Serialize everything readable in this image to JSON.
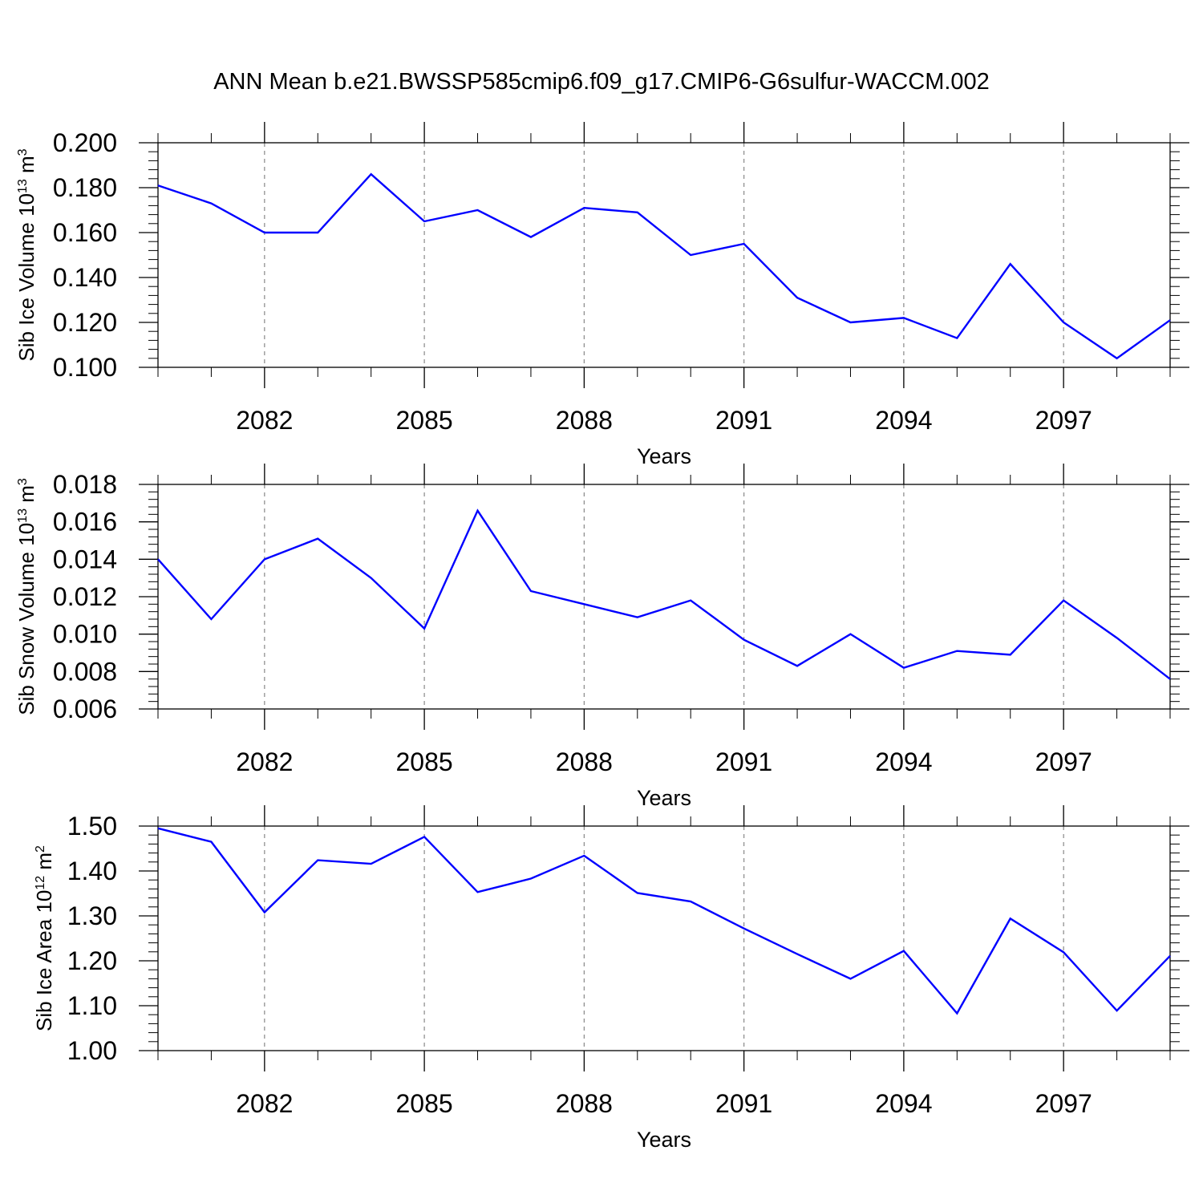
{
  "page": {
    "title": "ANN Mean b.e21.BWSSP585cmip6.f09_g17.CMIP6-G6sulfur-WACCM.002"
  },
  "colors": {
    "line": "#0000ff",
    "axis": "#000000",
    "grid": "#888888"
  },
  "chart_data": [
    {
      "type": "line",
      "title": "",
      "xlabel": "Years",
      "ylabel": "Sib Ice Volume 10",
      "ylabel_exp": "13",
      "ylabel_unit": " m",
      "ylabel_unit_exp": "3",
      "xlim": [
        2080,
        2099
      ],
      "ylim": [
        0.1,
        0.2
      ],
      "yticks": [
        0.1,
        0.12,
        0.14,
        0.16,
        0.18,
        0.2
      ],
      "ytick_labels": [
        "0.100",
        "0.120",
        "0.140",
        "0.160",
        "0.180",
        "0.200"
      ],
      "xticks": [
        2082,
        2085,
        2088,
        2091,
        2094,
        2097
      ],
      "xtick_labels": [
        "2082",
        "2085",
        "2088",
        "2091",
        "2094",
        "2097"
      ],
      "grid": "vertical dashed at major x ticks",
      "series": [
        {
          "x": [
            2080,
            2081,
            2082,
            2083,
            2084,
            2085,
            2086,
            2087,
            2088,
            2089,
            2090,
            2091,
            2092,
            2093,
            2094,
            2095,
            2096,
            2097,
            2098,
            2099
          ],
          "values": [
            0.181,
            0.173,
            0.16,
            0.16,
            0.186,
            0.165,
            0.17,
            0.158,
            0.171,
            0.169,
            0.15,
            0.155,
            0.131,
            0.12,
            0.122,
            0.113,
            0.146,
            0.12,
            0.104,
            0.121
          ]
        }
      ]
    },
    {
      "type": "line",
      "title": "",
      "xlabel": "Years",
      "ylabel": "Sib Snow Volume 10",
      "ylabel_exp": "13",
      "ylabel_unit": " m",
      "ylabel_unit_exp": "3",
      "xlim": [
        2080,
        2099
      ],
      "ylim": [
        0.006,
        0.018
      ],
      "yticks": [
        0.006,
        0.008,
        0.01,
        0.012,
        0.014,
        0.016,
        0.018
      ],
      "ytick_labels": [
        "0.006",
        "0.008",
        "0.010",
        "0.012",
        "0.014",
        "0.016",
        "0.018"
      ],
      "xticks": [
        2082,
        2085,
        2088,
        2091,
        2094,
        2097
      ],
      "xtick_labels": [
        "2082",
        "2085",
        "2088",
        "2091",
        "2094",
        "2097"
      ],
      "grid": "vertical dashed at major x ticks",
      "series": [
        {
          "x": [
            2080,
            2081,
            2082,
            2083,
            2084,
            2085,
            2086,
            2087,
            2088,
            2089,
            2090,
            2091,
            2092,
            2093,
            2094,
            2095,
            2096,
            2097,
            2098,
            2099
          ],
          "values": [
            0.014,
            0.0108,
            0.014,
            0.0151,
            0.013,
            0.0103,
            0.0166,
            0.0123,
            0.0116,
            0.0109,
            0.0118,
            0.0097,
            0.0083,
            0.01,
            0.0082,
            0.0091,
            0.0089,
            0.0118,
            0.0098,
            0.0076
          ]
        }
      ]
    },
    {
      "type": "line",
      "title": "",
      "xlabel": "Years",
      "ylabel": "Sib Ice Area 10",
      "ylabel_exp": "12",
      "ylabel_unit": " m",
      "ylabel_unit_exp": "2",
      "xlim": [
        2080,
        2099
      ],
      "ylim": [
        1.0,
        1.5
      ],
      "yticks": [
        1.0,
        1.1,
        1.2,
        1.3,
        1.4,
        1.5
      ],
      "ytick_labels": [
        "1.00",
        "1.10",
        "1.20",
        "1.30",
        "1.40",
        "1.50"
      ],
      "xticks": [
        2082,
        2085,
        2088,
        2091,
        2094,
        2097
      ],
      "xtick_labels": [
        "2082",
        "2085",
        "2088",
        "2091",
        "2094",
        "2097"
      ],
      "grid": "vertical dashed at major x ticks",
      "series": [
        {
          "x": [
            2080,
            2081,
            2082,
            2083,
            2084,
            2085,
            2086,
            2087,
            2088,
            2089,
            2090,
            2091,
            2092,
            2093,
            2094,
            2095,
            2096,
            2097,
            2098,
            2099
          ],
          "values": [
            1.495,
            1.465,
            1.308,
            1.424,
            1.416,
            1.476,
            1.353,
            1.383,
            1.434,
            1.351,
            1.332,
            1.272,
            1.215,
            1.16,
            1.222,
            1.083,
            1.294,
            1.219,
            1.089,
            1.211
          ]
        }
      ]
    }
  ]
}
